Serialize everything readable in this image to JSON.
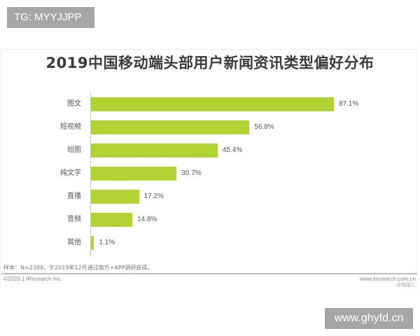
{
  "watermark_top": "TG: MYYJJPP",
  "watermark_bottom": "www.ghyfd.cn",
  "chart_title": "2019中国移动端头部用户新闻资讯类型偏好分布",
  "note": "样本：N=2389，于2019年12月通过南方+APP调研获得。",
  "copyright": "©2020.1 iResearch Inc.",
  "source_site": "www.iresearch.com.cn",
  "source_sub": "@格隆汇",
  "bar_color": "#b3d234",
  "chart_data": {
    "type": "bar",
    "orientation": "horizontal",
    "title": "2019中国移动端头部用户新闻资讯类型偏好分布",
    "categories": [
      "图文",
      "短视频",
      "组图",
      "纯文字",
      "直播",
      "音频",
      "其他"
    ],
    "values": [
      87.1,
      56.8,
      45.4,
      30.7,
      17.2,
      14.8,
      1.1
    ],
    "labels": [
      "87.1%",
      "56.8%",
      "45.4%",
      "30.7%",
      "17.2%",
      "14.8%",
      "1.1%"
    ],
    "xlabel": "",
    "ylabel": "",
    "unit": "%",
    "xlim": [
      0,
      100
    ],
    "grid": false,
    "legend": null
  }
}
